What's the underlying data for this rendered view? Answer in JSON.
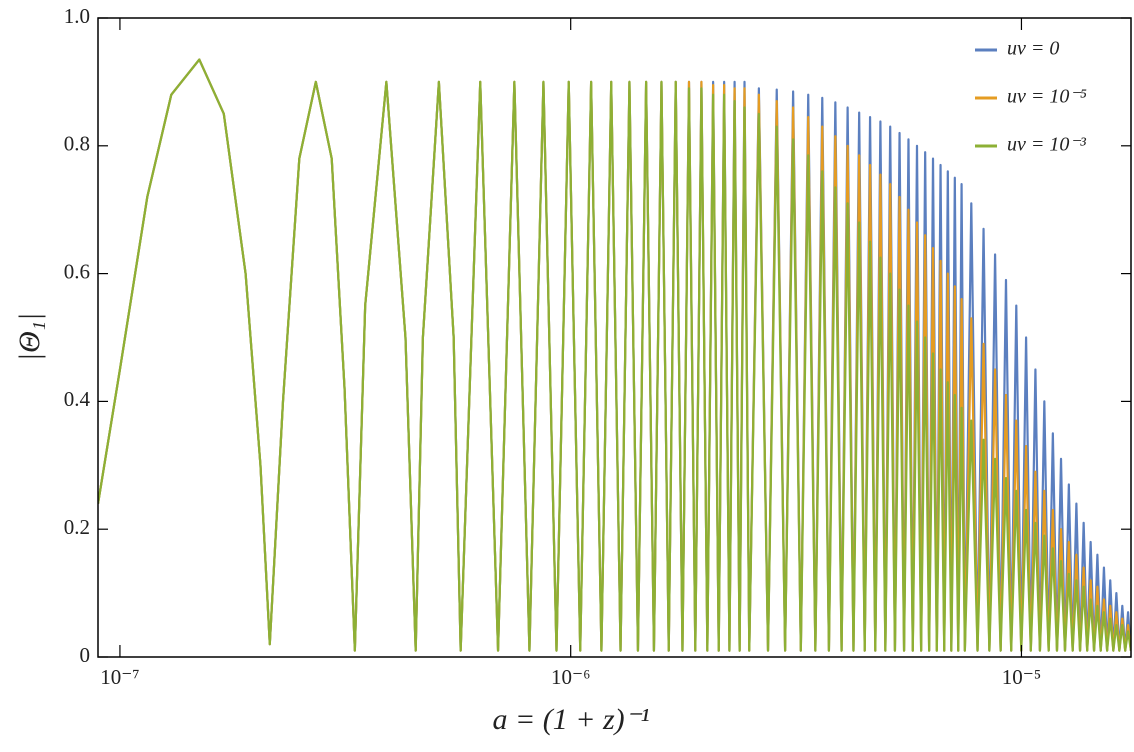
{
  "chart_data": {
    "type": "line",
    "x_label": "a = (1 + z)⁻¹",
    "y_label": "|Θ₁|",
    "xlog": true,
    "legend": "top-right",
    "xlim": [
      8.94e-08,
      1.75e-05
    ],
    "ylim": [
      0,
      1
    ],
    "xticks": [
      {
        "value": 1e-07,
        "label": "10⁻⁷"
      },
      {
        "value": 1e-06,
        "label": "10⁻⁶"
      },
      {
        "value": 1e-05,
        "label": "10⁻⁵"
      }
    ],
    "yticks": [
      0,
      0.2,
      0.4,
      0.6,
      0.8,
      {
        "value": 1,
        "label": "1.0"
      }
    ],
    "x": [
      8.94e-08,
      1e-07,
      1.15e-07,
      1.3e-07,
      1.5e-07,
      1.7e-07,
      1.9e-07,
      2.05e-07,
      2.15e-07,
      2.3e-07,
      2.5e-07,
      2.72e-07,
      2.95e-07,
      3.15e-07,
      3.32e-07,
      3.5e-07,
      3.9e-07,
      4.3e-07,
      4.53e-07,
      4.7e-07,
      5.1e-07,
      5.5e-07,
      5.7e-07,
      6.3e-07,
      6.9e-07,
      7.5e-07,
      8.1e-07,
      8.7e-07,
      9.3e-07,
      9.9e-07,
      1.05e-06,
      1.11e-06,
      1.17e-06,
      1.23e-06,
      1.29e-06,
      1.35e-06,
      1.41e-06,
      1.47e-06,
      1.53e-06,
      1.59e-06,
      1.65e-06,
      1.71e-06,
      1.77e-06,
      1.83e-06,
      1.89e-06,
      1.95e-06,
      2.01e-06,
      2.07e-06,
      2.13e-06,
      2.19e-06,
      2.25e-06,
      2.31e-06,
      2.37e-06,
      2.43e-06,
      2.49e-06,
      2.615e-06,
      2.74e-06,
      2.865e-06,
      2.99e-06,
      3.115e-06,
      3.24e-06,
      3.365e-06,
      3.49e-06,
      3.615e-06,
      3.74e-06,
      3.865e-06,
      3.99e-06,
      4.115e-06,
      4.24e-06,
      4.365e-06,
      4.49e-06,
      4.615e-06,
      4.74e-06,
      4.865e-06,
      4.99e-06,
      5.115e-06,
      5.24e-06,
      5.365e-06,
      5.49e-06,
      5.615e-06,
      5.74e-06,
      5.865e-06,
      5.99e-06,
      6.115e-06,
      6.24e-06,
      6.365e-06,
      6.49e-06,
      6.615e-06,
      6.74e-06,
      6.865e-06,
      6.99e-06,
      7.115e-06,
      7.24e-06,
      7.365e-06,
      7.49e-06,
      7.74e-06,
      7.99e-06,
      8.24e-06,
      8.49e-06,
      8.74e-06,
      8.99e-06,
      9.24e-06,
      9.49e-06,
      9.74e-06,
      9.99e-06,
      1.024e-05,
      1.049e-05,
      1.074e-05,
      1.099e-05,
      1.124e-05,
      1.149e-05,
      1.174e-05,
      1.199e-05,
      1.224e-05,
      1.249e-05,
      1.274e-05,
      1.299e-05,
      1.324e-05,
      1.349e-05,
      1.374e-05,
      1.399e-05,
      1.424e-05,
      1.449e-05,
      1.474e-05,
      1.499e-05,
      1.524e-05,
      1.549e-05,
      1.574e-05,
      1.599e-05,
      1.624e-05,
      1.649e-05,
      1.674e-05,
      1.699e-05,
      1.724e-05,
      1.749e-05
    ],
    "series": [
      {
        "name": "uν = 0",
        "color": "#5b7fbf",
        "values": [
          0.24,
          0.45,
          0.72,
          0.88,
          0.935,
          0.85,
          0.6,
          0.3,
          0.02,
          0.4,
          0.78,
          0.9,
          0.78,
          0.42,
          0.01,
          0.55,
          0.9,
          0.5,
          0.01,
          0.5,
          0.9,
          0.5,
          0.01,
          0.9,
          0.01,
          0.9,
          0.01,
          0.9,
          0.01,
          0.9,
          0.01,
          0.9,
          0.01,
          0.9,
          0.01,
          0.9,
          0.01,
          0.9,
          0.01,
          0.9,
          0.01,
          0.9,
          0.01,
          0.9,
          0.01,
          0.9,
          0.01,
          0.9,
          0.01,
          0.9,
          0.01,
          0.9,
          0.01,
          0.9,
          0.01,
          0.89,
          0.01,
          0.888,
          0.01,
          0.885,
          0.01,
          0.88,
          0.01,
          0.875,
          0.01,
          0.868,
          0.01,
          0.86,
          0.01,
          0.852,
          0.01,
          0.845,
          0.01,
          0.838,
          0.01,
          0.83,
          0.01,
          0.82,
          0.01,
          0.81,
          0.01,
          0.8,
          0.01,
          0.79,
          0.01,
          0.78,
          0.01,
          0.77,
          0.01,
          0.76,
          0.01,
          0.75,
          0.01,
          0.74,
          0.01,
          0.71,
          0.01,
          0.67,
          0.01,
          0.63,
          0.01,
          0.59,
          0.01,
          0.55,
          0.01,
          0.5,
          0.01,
          0.45,
          0.01,
          0.4,
          0.01,
          0.35,
          0.01,
          0.31,
          0.01,
          0.27,
          0.01,
          0.24,
          0.01,
          0.21,
          0.01,
          0.18,
          0.01,
          0.16,
          0.01,
          0.14,
          0.01,
          0.12,
          0.01,
          0.1,
          0.01,
          0.08,
          0.01,
          0.07,
          0.01
        ]
      },
      {
        "name": "uν = 10⁻⁵",
        "color": "#e59c22",
        "values": [
          0.24,
          0.45,
          0.72,
          0.88,
          0.935,
          0.85,
          0.6,
          0.3,
          0.02,
          0.4,
          0.78,
          0.9,
          0.78,
          0.42,
          0.01,
          0.55,
          0.9,
          0.5,
          0.01,
          0.5,
          0.9,
          0.5,
          0.01,
          0.9,
          0.01,
          0.9,
          0.01,
          0.9,
          0.01,
          0.9,
          0.01,
          0.9,
          0.01,
          0.9,
          0.01,
          0.9,
          0.01,
          0.9,
          0.01,
          0.9,
          0.01,
          0.9,
          0.01,
          0.9,
          0.01,
          0.9,
          0.01,
          0.895,
          0.01,
          0.895,
          0.01,
          0.89,
          0.01,
          0.89,
          0.01,
          0.88,
          0.01,
          0.87,
          0.01,
          0.86,
          0.01,
          0.845,
          0.01,
          0.83,
          0.01,
          0.815,
          0.01,
          0.8,
          0.01,
          0.785,
          0.01,
          0.77,
          0.01,
          0.755,
          0.01,
          0.74,
          0.01,
          0.72,
          0.01,
          0.7,
          0.01,
          0.68,
          0.01,
          0.66,
          0.01,
          0.64,
          0.01,
          0.62,
          0.01,
          0.6,
          0.01,
          0.58,
          0.01,
          0.56,
          0.01,
          0.53,
          0.01,
          0.49,
          0.01,
          0.45,
          0.01,
          0.41,
          0.01,
          0.37,
          0.01,
          0.33,
          0.01,
          0.29,
          0.01,
          0.26,
          0.01,
          0.23,
          0.01,
          0.2,
          0.01,
          0.18,
          0.01,
          0.16,
          0.01,
          0.14,
          0.01,
          0.12,
          0.01,
          0.11,
          0.01,
          0.09,
          0.01,
          0.08,
          0.01,
          0.07,
          0.01,
          0.06,
          0.01,
          0.05,
          0.01
        ]
      },
      {
        "name": "uν = 10⁻³",
        "color": "#8db035",
        "values": [
          0.24,
          0.45,
          0.72,
          0.88,
          0.935,
          0.85,
          0.6,
          0.3,
          0.02,
          0.4,
          0.78,
          0.9,
          0.78,
          0.42,
          0.01,
          0.55,
          0.9,
          0.5,
          0.01,
          0.5,
          0.9,
          0.5,
          0.01,
          0.9,
          0.01,
          0.9,
          0.01,
          0.9,
          0.01,
          0.9,
          0.01,
          0.9,
          0.01,
          0.9,
          0.01,
          0.9,
          0.01,
          0.9,
          0.01,
          0.9,
          0.01,
          0.9,
          0.01,
          0.89,
          0.01,
          0.89,
          0.01,
          0.88,
          0.01,
          0.88,
          0.01,
          0.87,
          0.01,
          0.86,
          0.01,
          0.85,
          0.01,
          0.83,
          0.01,
          0.81,
          0.01,
          0.785,
          0.01,
          0.76,
          0.01,
          0.735,
          0.01,
          0.71,
          0.01,
          0.68,
          0.01,
          0.65,
          0.01,
          0.625,
          0.01,
          0.6,
          0.01,
          0.575,
          0.01,
          0.55,
          0.01,
          0.525,
          0.01,
          0.5,
          0.01,
          0.475,
          0.01,
          0.45,
          0.01,
          0.43,
          0.01,
          0.41,
          0.01,
          0.39,
          0.01,
          0.37,
          0.01,
          0.34,
          0.01,
          0.31,
          0.01,
          0.28,
          0.01,
          0.26,
          0.01,
          0.23,
          0.01,
          0.21,
          0.01,
          0.19,
          0.01,
          0.17,
          0.01,
          0.15,
          0.01,
          0.13,
          0.01,
          0.12,
          0.01,
          0.11,
          0.01,
          0.09,
          0.01,
          0.08,
          0.01,
          0.07,
          0.01,
          0.06,
          0.01,
          0.05,
          0.01,
          0.05,
          0.01,
          0.04,
          0.01
        ]
      }
    ]
  }
}
